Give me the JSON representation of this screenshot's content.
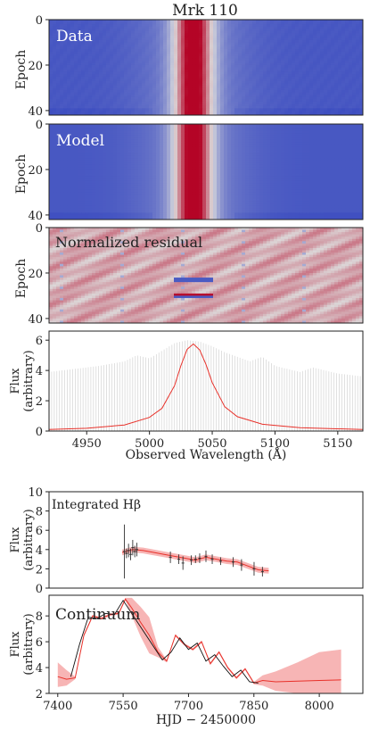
{
  "figure": {
    "title": "Mrk 110"
  },
  "chart_data": [
    {
      "type": "heatmap",
      "panel_label": "Data",
      "ylabel": "Epoch",
      "yticks": [
        0,
        20,
        40
      ],
      "ylim": [
        0,
        42
      ],
      "xlim": [
        4920,
        5170
      ],
      "colormap": [
        "#3b4cc0",
        "#dddddd",
        "#b40426"
      ],
      "line_center": 5035,
      "line_width": 22
    },
    {
      "type": "heatmap",
      "panel_label": "Model",
      "ylabel": "Epoch",
      "yticks": [
        0,
        20,
        40
      ],
      "ylim": [
        0,
        42
      ],
      "xlim": [
        4920,
        5170
      ],
      "line_center": 5035,
      "line_width": 22
    },
    {
      "type": "heatmap",
      "panel_label": "Normalized residual",
      "ylabel": "Epoch",
      "yticks": [
        0,
        20,
        40
      ],
      "ylim": [
        0,
        42
      ],
      "xlim": [
        4920,
        5170
      ]
    },
    {
      "type": "line",
      "ylabel": "Flux\n(arbitrary)",
      "ylabel_lines": [
        "Flux",
        "(arbitrary)"
      ],
      "xlabel": "Observed Wavelength (Å)",
      "xlim": [
        4920,
        5170
      ],
      "ylim": [
        0,
        6.6
      ],
      "xticks": [
        4950,
        5000,
        5050,
        5100,
        5150
      ],
      "yticks": [
        0,
        2,
        4,
        6
      ],
      "series": [
        {
          "style": "model-line",
          "color": "#e8312a",
          "x": [
            4920,
            4950,
            4980,
            5000,
            5010,
            5020,
            5025,
            5030,
            5035,
            5040,
            5045,
            5050,
            5060,
            5070,
            5090,
            5120,
            5170
          ],
          "y": [
            0.1,
            0.18,
            0.4,
            0.9,
            1.5,
            3.0,
            4.3,
            5.4,
            5.75,
            5.35,
            4.4,
            3.2,
            1.6,
            0.95,
            0.45,
            0.22,
            0.1
          ]
        }
      ],
      "band": {
        "color": "#cccccc",
        "x": [
          4920,
          4940,
          4960,
          4980,
          4990,
          5000,
          5010,
          5020,
          5030,
          5040,
          5050,
          5060,
          5070,
          5080,
          5090,
          5100,
          5110,
          5120,
          5130,
          5140,
          5150,
          5160,
          5170
        ],
        "upper": [
          3.9,
          4.1,
          4.3,
          4.6,
          5.0,
          4.8,
          5.3,
          5.8,
          6.0,
          5.9,
          5.6,
          5.2,
          4.9,
          4.6,
          4.9,
          4.3,
          4.1,
          3.9,
          4.2,
          4.0,
          3.8,
          3.7,
          3.6
        ]
      }
    },
    {
      "type": "line",
      "panel_label": "Integrated Hβ",
      "ylabel": "Flux\n(arbitrary)",
      "ylabel_lines": [
        "Flux",
        "(arbitrary)"
      ],
      "xlim": [
        7350,
        8100
      ],
      "ylim": [
        0,
        10
      ],
      "yticks": [
        0,
        2,
        4,
        6,
        8,
        10
      ],
      "series": [
        {
          "name": "model",
          "color": "#e8312a",
          "x": [
            7525,
            7550,
            7575,
            7600,
            7625,
            7650,
            7675,
            7700,
            7725,
            7750,
            7775,
            7800,
            7825,
            7850,
            7875
          ],
          "y": [
            3.7,
            4.0,
            3.9,
            3.7,
            3.5,
            3.3,
            3.1,
            2.9,
            3.2,
            3.0,
            2.8,
            2.7,
            2.3,
            1.9,
            1.8
          ],
          "lower": [
            3.4,
            3.7,
            3.6,
            3.4,
            3.2,
            3.0,
            2.8,
            2.6,
            2.9,
            2.7,
            2.5,
            2.4,
            2.0,
            1.6,
            1.5
          ],
          "upper": [
            4.0,
            4.3,
            4.2,
            4.0,
            3.8,
            3.6,
            3.4,
            3.2,
            3.5,
            3.3,
            3.1,
            3.0,
            2.6,
            2.2,
            2.1
          ]
        }
      ],
      "points": {
        "x": [
          7530,
          7535,
          7540,
          7545,
          7550,
          7555,
          7560,
          7640,
          7660,
          7670,
          7690,
          7700,
          7710,
          7725,
          7740,
          7760,
          7790,
          7810,
          7840,
          7860
        ],
        "y": [
          3.8,
          3.6,
          3.9,
          3.5,
          4.2,
          3.8,
          4.0,
          3.2,
          3.0,
          2.6,
          2.9,
          3.0,
          3.1,
          3.3,
          3.0,
          2.8,
          2.7,
          2.4,
          2.0,
          1.7
        ],
        "err": [
          2.8,
          0.5,
          0.7,
          0.6,
          0.8,
          0.6,
          0.7,
          0.6,
          0.5,
          0.7,
          0.5,
          0.4,
          0.5,
          0.6,
          0.5,
          0.4,
          0.5,
          0.6,
          0.7,
          0.5
        ]
      }
    },
    {
      "type": "line",
      "panel_label": "Continuum",
      "ylabel": "Flux\n(arbitrary)",
      "ylabel_lines": [
        "Flux",
        "(arbitrary)"
      ],
      "xlabel": "HJD − 2450000",
      "xlim": [
        7380,
        8100
      ],
      "ylim": [
        2,
        9.6
      ],
      "xticks": [
        7400,
        7550,
        7700,
        7850,
        8000
      ],
      "yticks": [
        2,
        4,
        6,
        8
      ],
      "series": [
        {
          "name": "model",
          "color": "#e8312a",
          "x": [
            7400,
            7420,
            7440,
            7460,
            7480,
            7500,
            7520,
            7540,
            7555,
            7570,
            7590,
            7610,
            7630,
            7650,
            7670,
            7690,
            7710,
            7730,
            7750,
            7770,
            7790,
            7810,
            7830,
            7850,
            7870,
            7900,
            7950,
            8000,
            8050
          ],
          "y": [
            3.3,
            3.1,
            3.2,
            6.5,
            8.0,
            7.8,
            8.1,
            8.2,
            9.3,
            8.6,
            7.5,
            6.5,
            5.2,
            4.5,
            6.5,
            5.8,
            5.4,
            6.0,
            4.3,
            5.2,
            4.0,
            3.2,
            3.9,
            2.8,
            3.0,
            2.9,
            2.95,
            3.0,
            3.05
          ],
          "lower": [
            2.5,
            2.6,
            3.1,
            6.4,
            7.9,
            7.7,
            8.0,
            8.1,
            9.2,
            8.0,
            6.4,
            5.1,
            4.8,
            4.4,
            6.4,
            5.7,
            5.3,
            5.9,
            4.2,
            5.1,
            3.9,
            3.1,
            3.8,
            2.7,
            2.6,
            2.2,
            1.5,
            0.9,
            0.7
          ],
          "upper": [
            4.4,
            3.8,
            3.3,
            6.6,
            8.1,
            7.9,
            8.2,
            8.3,
            9.4,
            9.4,
            8.7,
            7.9,
            5.6,
            4.6,
            6.6,
            5.9,
            5.5,
            6.1,
            4.4,
            5.3,
            4.1,
            3.3,
            4.0,
            2.9,
            3.4,
            3.7,
            4.4,
            5.2,
            5.4
          ]
        },
        {
          "name": "data",
          "color": "#111111",
          "x": [
            7430,
            7450,
            7470,
            7490,
            7510,
            7530,
            7550,
            7640,
            7660,
            7680,
            7700,
            7720,
            7740,
            7760,
            7780,
            7800,
            7820,
            7840,
            7860
          ],
          "y": [
            3.3,
            5.8,
            7.9,
            7.8,
            8.2,
            8.1,
            9.2,
            4.6,
            5.2,
            6.3,
            5.4,
            5.9,
            4.5,
            5.0,
            4.1,
            3.3,
            3.8,
            2.9,
            2.8
          ]
        }
      ]
    }
  ]
}
